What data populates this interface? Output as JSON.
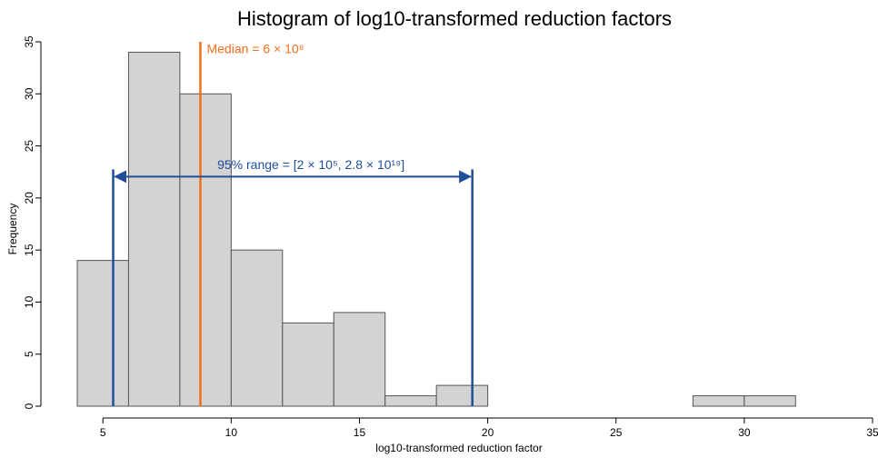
{
  "chart_data": {
    "type": "histogram",
    "title": "Histogram of log10-transformed reduction factors",
    "xlabel": "log10-transformed reduction factor",
    "ylabel": "Frequency",
    "bins": [
      4,
      6,
      8,
      10,
      12,
      14,
      16,
      18,
      20,
      22,
      24,
      26,
      28,
      30,
      32
    ],
    "values": [
      14,
      34,
      30,
      15,
      8,
      9,
      1,
      2,
      0,
      0,
      0,
      0,
      1,
      1
    ],
    "color": "#d3d3d3",
    "xlim": [
      4,
      35
    ],
    "xticks": [
      5,
      10,
      15,
      20,
      25,
      30,
      35
    ],
    "ylim": [
      0,
      35
    ],
    "yticks": [
      0,
      5,
      10,
      15,
      20,
      25,
      30,
      35
    ],
    "median": {
      "label": "Median = 6 × 10⁸",
      "value": 8.8,
      "color": "#f26f1a"
    },
    "range": {
      "label": "95% range = [2 × 10⁵, 2.8 × 10¹⁹]",
      "values": [
        5.4,
        19.4
      ],
      "color": "#1f4e9c"
    }
  }
}
